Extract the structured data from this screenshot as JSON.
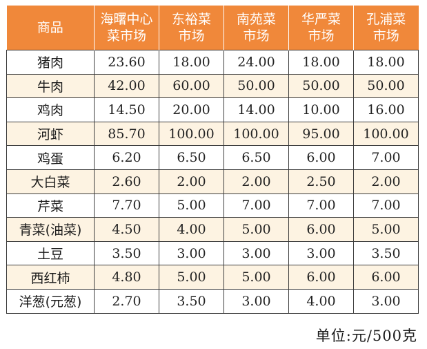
{
  "table": {
    "columns": [
      {
        "line1": "商品",
        "line2": ""
      },
      {
        "line1": "海曙中心",
        "line2": "菜市场"
      },
      {
        "line1": "东裕菜",
        "line2": "市场"
      },
      {
        "line1": "南苑菜",
        "line2": "市场"
      },
      {
        "line1": "华严菜",
        "line2": "市场"
      },
      {
        "line1": "孔浦菜",
        "line2": "市场"
      }
    ],
    "rows": [
      {
        "item": "猪肉",
        "prices": [
          "23.60",
          "18.00",
          "24.00",
          "18.00",
          "18.00"
        ]
      },
      {
        "item": "牛肉",
        "prices": [
          "42.00",
          "60.00",
          "50.00",
          "50.00",
          "50.00"
        ]
      },
      {
        "item": "鸡肉",
        "prices": [
          "14.50",
          "20.00",
          "14.00",
          "10.00",
          "16.00"
        ]
      },
      {
        "item": "河虾",
        "prices": [
          "85.70",
          "100.00",
          "100.00",
          "95.00",
          "100.00"
        ]
      },
      {
        "item": "鸡蛋",
        "prices": [
          "6.20",
          "6.50",
          "6.50",
          "6.00",
          "7.00"
        ]
      },
      {
        "item": "大白菜",
        "prices": [
          "2.60",
          "2.00",
          "2.00",
          "2.50",
          "2.00"
        ]
      },
      {
        "item": "芹菜",
        "prices": [
          "7.70",
          "5.00",
          "7.00",
          "7.00",
          "7.00"
        ]
      },
      {
        "item": "青菜(油菜)",
        "prices": [
          "4.50",
          "4.00",
          "5.00",
          "6.00",
          "5.00"
        ]
      },
      {
        "item": "土豆",
        "prices": [
          "3.50",
          "3.00",
          "3.00",
          "3.00",
          "3.50"
        ]
      },
      {
        "item": "西红柿",
        "prices": [
          "4.80",
          "5.00",
          "5.00",
          "6.00",
          "6.00"
        ]
      },
      {
        "item": "洋葱(元葱)",
        "prices": [
          "2.70",
          "3.50",
          "3.00",
          "4.00",
          "3.00"
        ]
      }
    ]
  },
  "unit_note": "单位:元/500克",
  "colors": {
    "header_bg": "#f0883a",
    "header_text": "#ffffff",
    "alt_row_bg": "#fdf3e2",
    "border": "#3a3a3a"
  }
}
